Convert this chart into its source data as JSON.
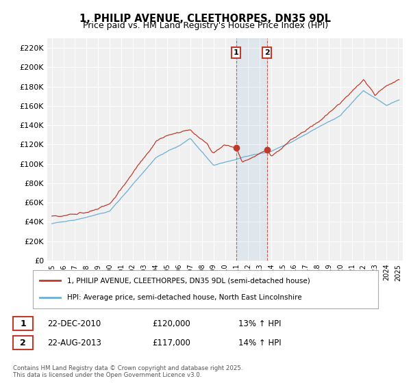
{
  "title": "1, PHILIP AVENUE, CLEETHORPES, DN35 9DL",
  "subtitle": "Price paid vs. HM Land Registry's House Price Index (HPI)",
  "ylim": [
    0,
    230000
  ],
  "yticks": [
    0,
    20000,
    40000,
    60000,
    80000,
    100000,
    120000,
    140000,
    160000,
    180000,
    200000,
    220000
  ],
  "ytick_labels": [
    "£0",
    "£20K",
    "£40K",
    "£60K",
    "£80K",
    "£100K",
    "£120K",
    "£140K",
    "£160K",
    "£180K",
    "£200K",
    "£220K"
  ],
  "hpi_color": "#6baed6",
  "price_color": "#c0392b",
  "marker1_date": 2010.97,
  "marker2_date": 2013.64,
  "legend_line1": "1, PHILIP AVENUE, CLEETHORPES, DN35 9DL (semi-detached house)",
  "legend_line2": "HPI: Average price, semi-detached house, North East Lincolnshire",
  "footer": "Contains HM Land Registry data © Crown copyright and database right 2025.\nThis data is licensed under the Open Government Licence v3.0.",
  "background_color": "#ffffff",
  "plot_bg_color": "#f0f0f0"
}
